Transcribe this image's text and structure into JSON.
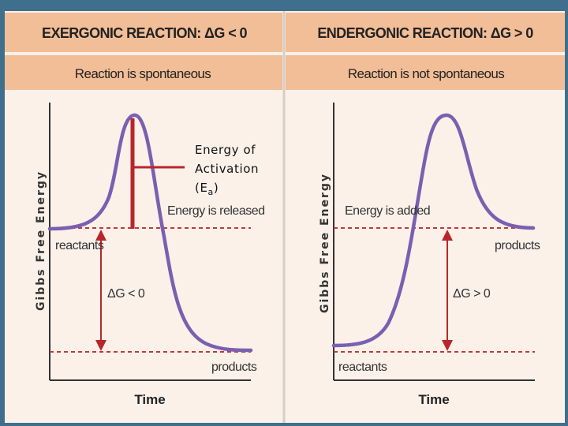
{
  "left_panel": {
    "header": "EXERGONIC REACTION: ΔG < 0",
    "subheader": "Reaction is spontaneous",
    "y_axis_label": "Gibbs Free Energy",
    "x_axis_label": "Time",
    "start_label": "reactants",
    "end_label": "products",
    "energy_label": "Energy is released",
    "delta_label": "ΔG < 0",
    "activation_label": {
      "line1": "Energy of",
      "line2": "Activation",
      "line3_prefix": "(E",
      "line3_sub": "a",
      "line3_suffix": ")"
    }
  },
  "right_panel": {
    "header": "ENDERGONIC REACTION: ΔG > 0",
    "subheader": "Reaction is not spontaneous",
    "y_axis_label": "Gibbs Free Energy",
    "x_axis_label": "Time",
    "start_label": "reactants",
    "end_label": "products",
    "energy_label": "Energy is added",
    "delta_label": "ΔG > 0"
  },
  "colors": {
    "frame": "#3f6f8c",
    "header_bg": "#f2be97",
    "panel_bg": "#fbf1e9",
    "curve": "#7b5fb0",
    "arrow": "#b8262b",
    "dashed": "#c0393b"
  }
}
